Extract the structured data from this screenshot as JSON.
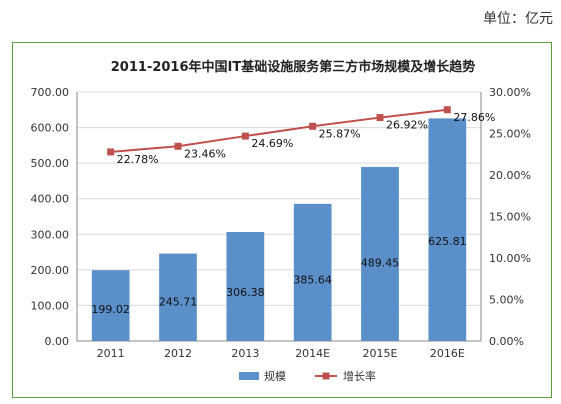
{
  "unit_label": "单位：亿元",
  "colors": {
    "bar": "#5b8fc9",
    "line": "#c0504d",
    "frame": "#5a9e3a",
    "grid": "#d9d9d9"
  },
  "chart_data": {
    "type": "bar",
    "title": "2011-2016年中国IT基础设施服务第三方市场规模及增长趋势",
    "categories": [
      "2011",
      "2012",
      "2013",
      "2014E",
      "2015E",
      "2016E"
    ],
    "series": [
      {
        "name": "规模",
        "type": "bar",
        "axis": "left",
        "values": [
          199.02,
          245.71,
          306.38,
          385.64,
          489.45,
          625.81
        ],
        "labels": [
          "199.02",
          "245.71",
          "306.38",
          "385.64",
          "489.45",
          "625.81"
        ]
      },
      {
        "name": "增长率",
        "type": "line",
        "axis": "right",
        "values": [
          22.78,
          23.46,
          24.69,
          25.87,
          26.92,
          27.86
        ],
        "labels": [
          "22.78%",
          "23.46%",
          "24.69%",
          "25.87%",
          "26.92%",
          "27.86%"
        ]
      }
    ],
    "y_left": {
      "min": 0,
      "max": 700,
      "ticks": [
        "0.00",
        "100.00",
        "200.00",
        "300.00",
        "400.00",
        "500.00",
        "600.00",
        "700.00"
      ]
    },
    "y_right": {
      "min": 0,
      "max": 30,
      "ticks": [
        "0.00%",
        "5.00%",
        "10.00%",
        "15.00%",
        "20.00%",
        "25.00%",
        "30.00%"
      ]
    },
    "grid": true,
    "legend_position": "bottom"
  }
}
